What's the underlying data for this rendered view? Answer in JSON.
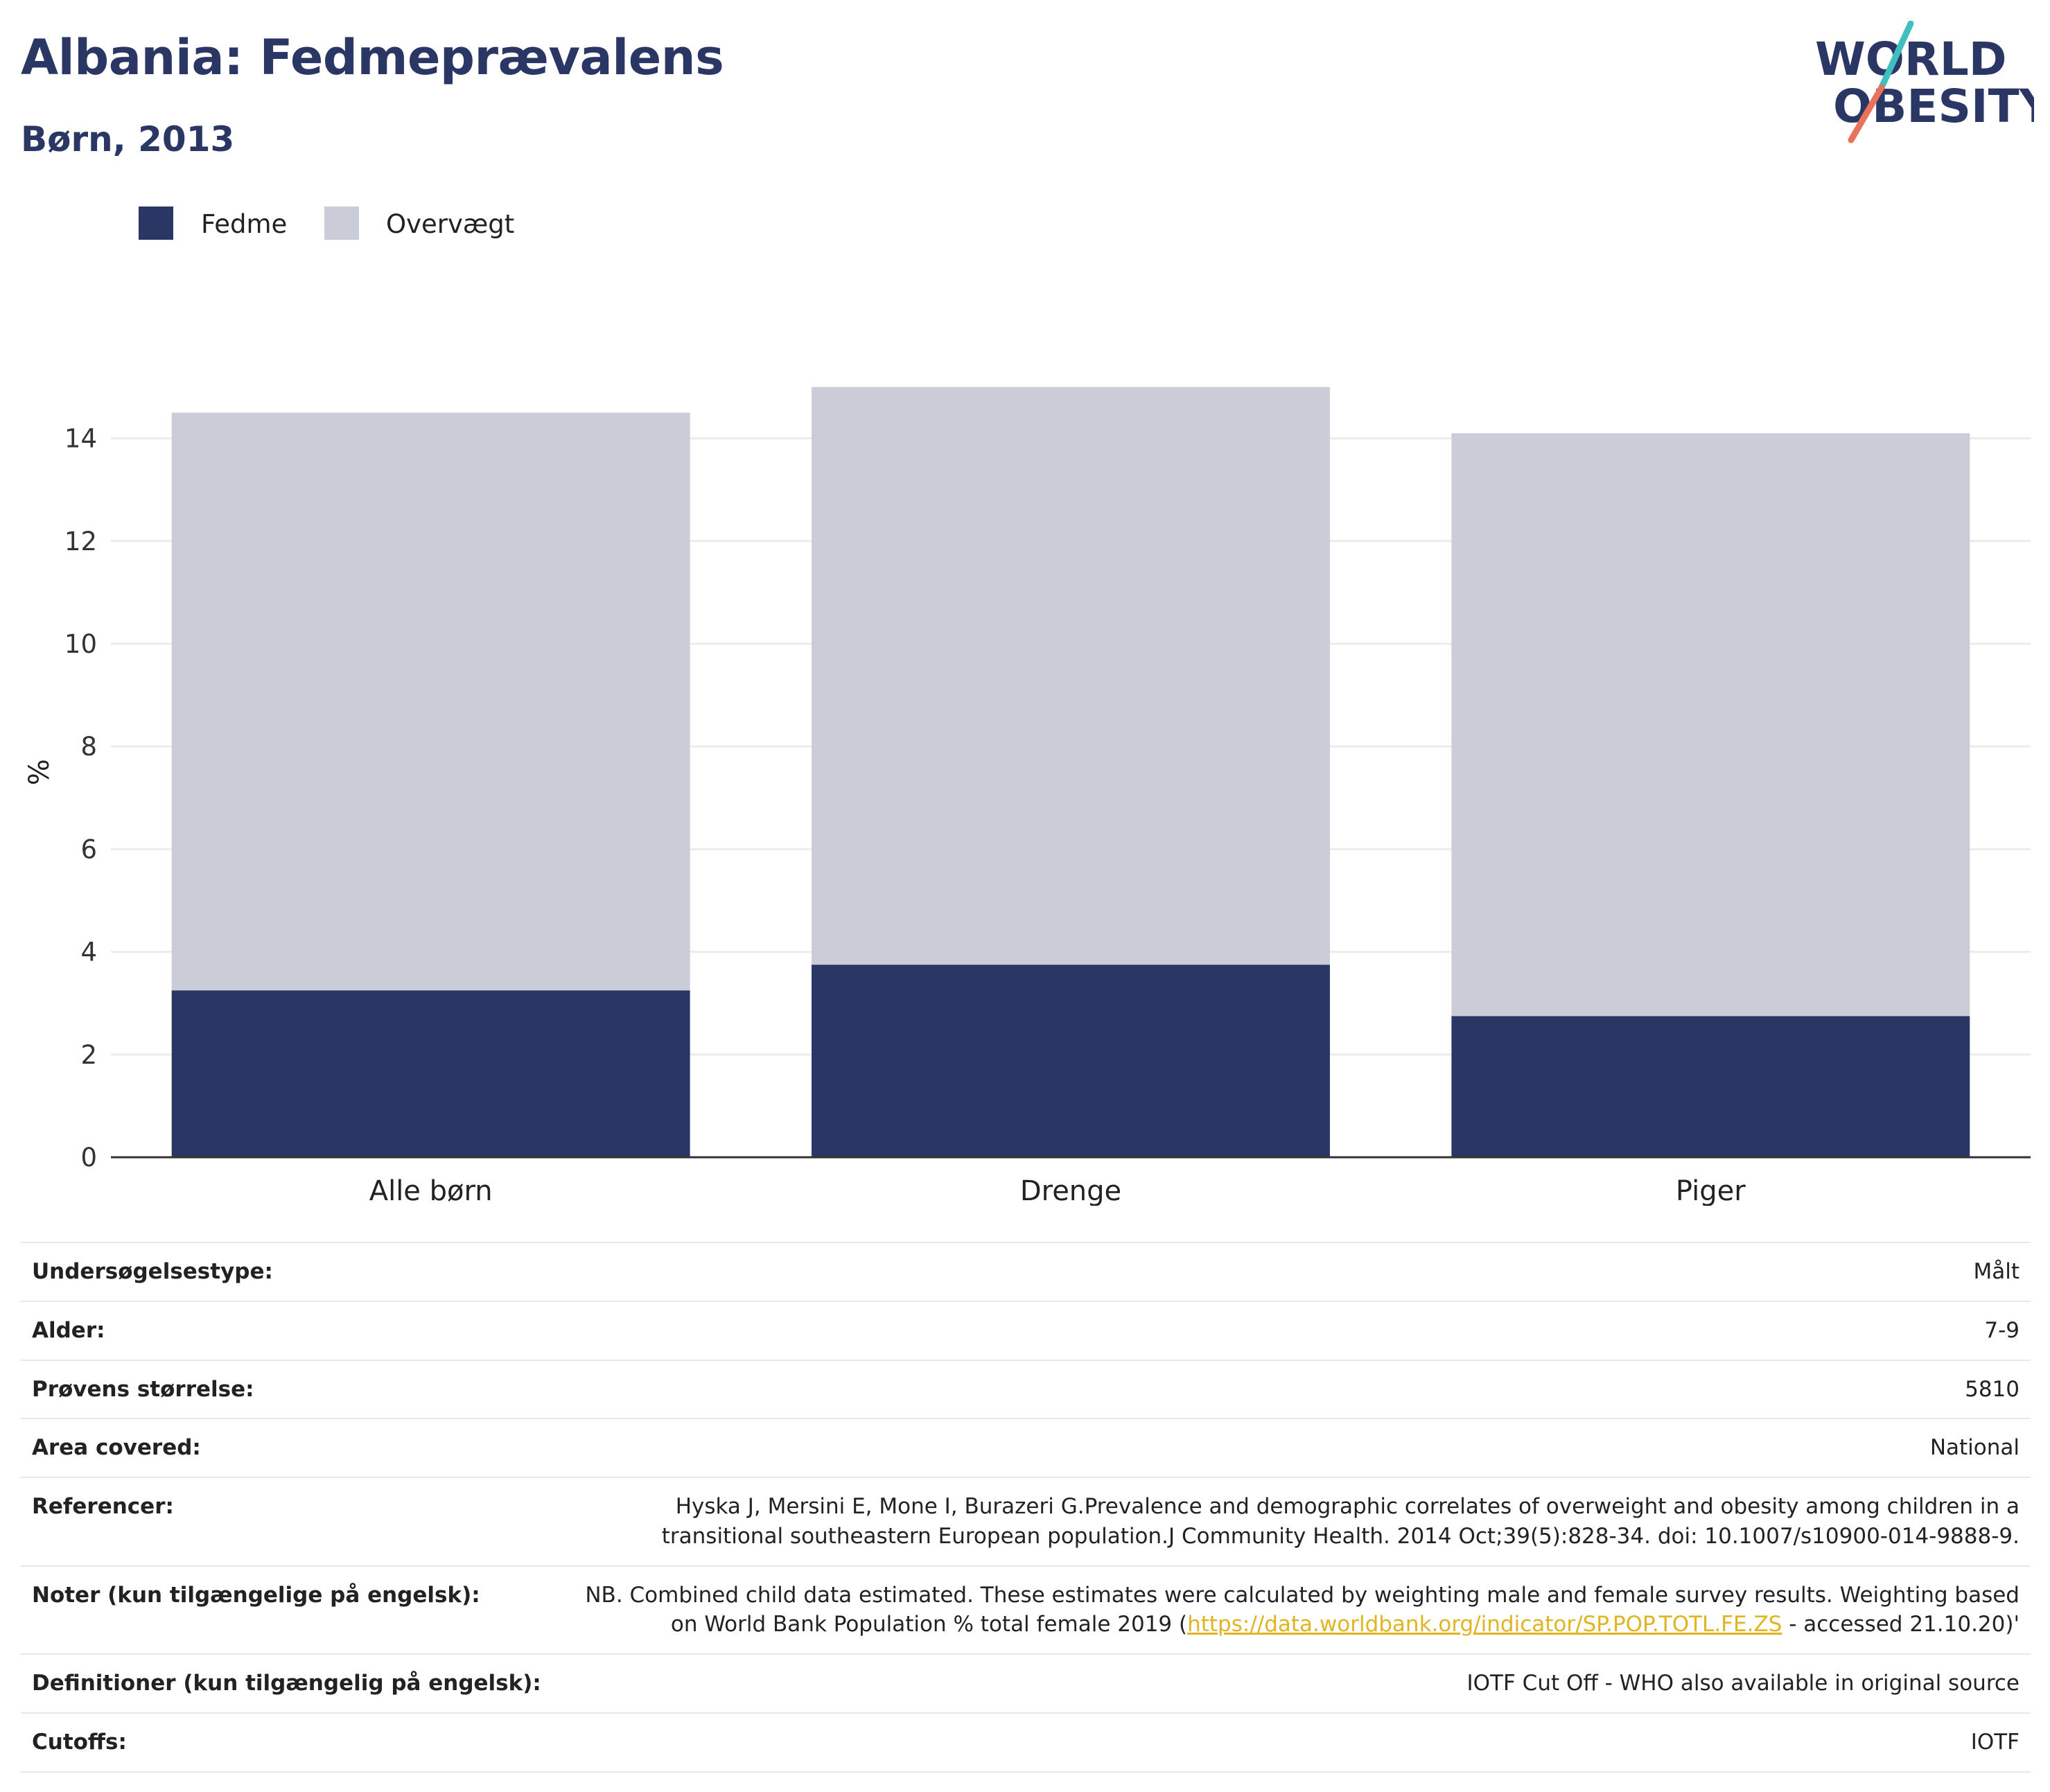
{
  "title": "Albania: Fedmeprævalens",
  "subtitle": "Børn, 2013",
  "logo": {
    "line1": "WORLD",
    "line2": "OBESITY"
  },
  "colors": {
    "fedme": "#2a3764",
    "overvaegt": "#cacdd8",
    "title": "#2a3764",
    "link": "#e0b521",
    "logo_teal": "#3fbfc0",
    "logo_coral": "#e8735a"
  },
  "chart_data": {
    "type": "bar",
    "stacked": true,
    "categories": [
      "Alle børn",
      "Drenge",
      "Piger"
    ],
    "series": [
      {
        "name": "Fedme",
        "values": [
          3.25,
          3.75,
          2.75
        ]
      },
      {
        "name": "Overvægt",
        "values": [
          11.25,
          11.25,
          11.35
        ]
      }
    ],
    "totals": [
      14.5,
      15.0,
      14.1
    ],
    "ylabel": "%",
    "ylim": [
      0,
      15.5
    ],
    "yticks": [
      0,
      2,
      4,
      6,
      8,
      10,
      12,
      14
    ],
    "grid": true,
    "legend_position": "top-left"
  },
  "info": {
    "survey_type": {
      "label": "Undersøgelsestype:",
      "value": "Målt"
    },
    "age": {
      "label": "Alder:",
      "value": "7-9"
    },
    "sample_size": {
      "label": "Prøvens størrelse:",
      "value": "5810"
    },
    "area": {
      "label": "Area covered:",
      "value": "National"
    },
    "references": {
      "label": "Referencer:",
      "value": "Hyska J, Mersini E, Mone I, Burazeri G.Prevalence and demographic correlates of overweight and obesity among children in a transitional southeastern European population.J Community Health. 2014 Oct;39(5):828-34. doi: 10.1007/s10900-014-9888-9."
    },
    "notes": {
      "label": "Noter (kun tilgængelige på engelsk):",
      "value_pre": "NB. Combined child data estimated. These estimates were calculated by weighting male and female survey results. Weighting based on World Bank Population % total female 2019 (",
      "link": "https://data.worldbank.org/indicator/SP.POP.TOTL.FE.ZS",
      "value_post": " - accessed 21.10.20)'"
    },
    "definitions": {
      "label": "Definitioner (kun tilgængelig på engelsk):",
      "value": "IOTF Cut Off - WHO also available in original source"
    },
    "cutoffs": {
      "label": "Cutoffs:",
      "value": "IOTF"
    }
  }
}
